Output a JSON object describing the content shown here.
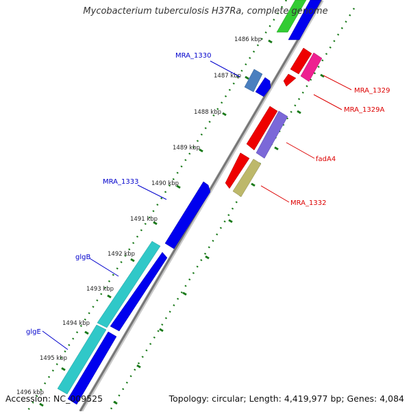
{
  "title": "Mycobacterium tuberculosis H37Ra, complete genome",
  "footer": {
    "accession": "Accession: NC_009525",
    "topology": "Topology: circular; Length: 4,419,977 bp; Genes: 4,084"
  },
  "colors": {
    "backbone": "#8c8c8c",
    "tick": "#1a7a1a",
    "forward_label": "#0000cc",
    "reverse_label": "#dd0000"
  },
  "scale": {
    "unit": "kbp",
    "ticks": [
      "1486 kbp",
      "1487 kbp",
      "1488 kbp",
      "1489 kbp",
      "1490 kbp",
      "1491 kbp",
      "1492 kbp",
      "1493 kbp",
      "1494 kbp",
      "1495 kbp",
      "1496 kbp"
    ]
  },
  "genes": [
    {
      "name": "MRA_1330",
      "strand": "forward",
      "color": "#4a7fbf"
    },
    {
      "name": "MRA_1333",
      "strand": "forward",
      "color": "#0000ee"
    },
    {
      "name": "glgB",
      "strand": "forward",
      "color": "#30c8c8"
    },
    {
      "name": "glgE",
      "strand": "forward",
      "color": "#30c8c8"
    },
    {
      "name": "MRA_1329",
      "strand": "reverse",
      "color": "#ee2090"
    },
    {
      "name": "MRA_1329A",
      "strand": "reverse",
      "color": "#ee0000"
    },
    {
      "name": "fadA4",
      "strand": "reverse",
      "color": "#7b68d8"
    },
    {
      "name": "MRA_1332",
      "strand": "reverse",
      "color": "#bdb86a"
    }
  ]
}
